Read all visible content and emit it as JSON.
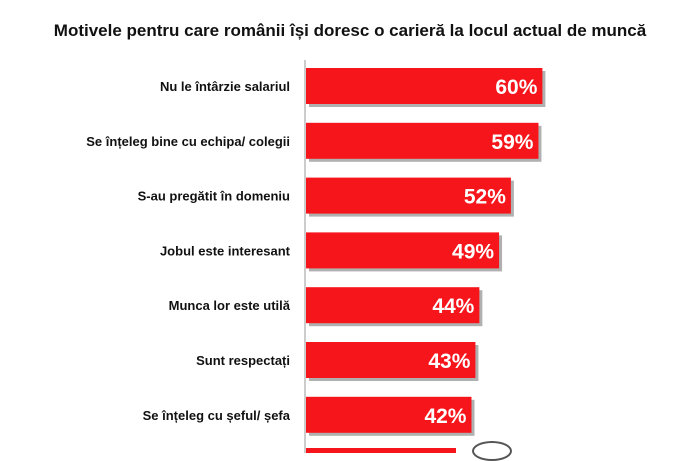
{
  "chart_data": {
    "type": "bar",
    "orientation": "horizontal",
    "title": "Motivele pentru care românii își doresc o carieră la locul actual de muncă",
    "categories": [
      "Nu le întârzie salariul",
      "Se înțeleg bine cu echipa/ colegii",
      "S-au pregătit în domeniu",
      "Jobul este interesant",
      "Munca lor este utilă",
      "Sunt respectați",
      "Se înțeleg cu șeful/ șefa"
    ],
    "values": [
      60,
      59,
      52,
      49,
      44,
      43,
      42
    ],
    "value_labels": [
      "60%",
      "59%",
      "52%",
      "49%",
      "44%",
      "43%",
      "42%"
    ],
    "unit": "%",
    "xlim": [
      0,
      60
    ],
    "grid": false,
    "legend": "none",
    "colors": {
      "bar": "#f5151b",
      "bar_shadow": "#b0b0b0",
      "axis": "#9a9a9a",
      "text": "#111111",
      "value_text": "#ffffff"
    }
  }
}
